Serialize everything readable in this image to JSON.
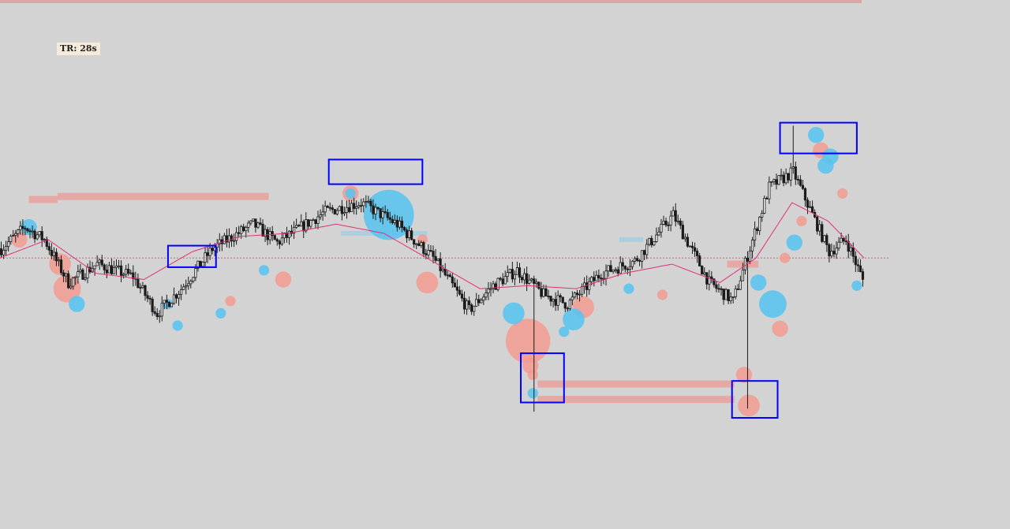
{
  "timer": {
    "label": "TR: 28s"
  },
  "colors": {
    "background": "#d3d3d3",
    "candle": "#1c1c1c",
    "moving_average": "#e0307a",
    "sell_bubble": "#f29a90",
    "buy_bubble": "#5cc3ee",
    "liquidity_zone": "#e8a3a0",
    "buy_zone": "#a9cde0",
    "highlight_box": "#0000ff",
    "price_line": "#cc6666",
    "top_band": "#dca4a4"
  },
  "chart_data": {
    "type": "candlestick",
    "title": "",
    "xlabel": "",
    "ylabel": "",
    "timer_label": "TR: 28s",
    "x_count": 360,
    "ylim": [
      0,
      100
    ],
    "grid": false,
    "legend": "none",
    "price_path": [
      [
        0,
        55
      ],
      [
        10,
        62
      ],
      [
        18,
        58
      ],
      [
        28,
        44
      ],
      [
        40,
        50
      ],
      [
        55,
        46
      ],
      [
        65,
        34
      ],
      [
        75,
        42
      ],
      [
        88,
        55
      ],
      [
        105,
        63
      ],
      [
        115,
        57
      ],
      [
        135,
        67
      ],
      [
        150,
        70
      ],
      [
        165,
        63
      ],
      [
        180,
        52
      ],
      [
        195,
        35
      ],
      [
        205,
        43
      ],
      [
        215,
        48
      ],
      [
        226,
        40
      ],
      [
        236,
        37
      ],
      [
        250,
        47
      ],
      [
        264,
        51
      ],
      [
        280,
        66
      ],
      [
        295,
        44
      ],
      [
        305,
        38
      ],
      [
        320,
        75
      ],
      [
        330,
        80
      ],
      [
        345,
        54
      ],
      [
        352,
        58
      ],
      [
        360,
        43
      ]
    ],
    "moving_average": [
      [
        0,
        52
      ],
      [
        20,
        58
      ],
      [
        40,
        47
      ],
      [
        60,
        45
      ],
      [
        80,
        54
      ],
      [
        100,
        59
      ],
      [
        120,
        60
      ],
      [
        140,
        63
      ],
      [
        160,
        60
      ],
      [
        180,
        51
      ],
      [
        200,
        42
      ],
      [
        220,
        43
      ],
      [
        240,
        42
      ],
      [
        260,
        47
      ],
      [
        280,
        50
      ],
      [
        300,
        44
      ],
      [
        315,
        52
      ],
      [
        330,
        70
      ],
      [
        345,
        64
      ],
      [
        360,
        52
      ]
    ],
    "spikes": [
      {
        "x": 222,
        "low": 2
      },
      {
        "x": 311,
        "low": 3
      },
      {
        "x": 330,
        "high": 95
      }
    ],
    "bubbles": [
      {
        "x": 8,
        "y": 58,
        "size": 2,
        "side": "sell"
      },
      {
        "x": 12,
        "y": 62,
        "size": 2,
        "side": "buy"
      },
      {
        "x": 25,
        "y": 50,
        "size": 3,
        "side": "sell"
      },
      {
        "x": 28,
        "y": 42,
        "size": 4,
        "side": "sell"
      },
      {
        "x": 32,
        "y": 37,
        "size": 2,
        "side": "buy"
      },
      {
        "x": 70,
        "y": 37,
        "size": 1,
        "side": "buy"
      },
      {
        "x": 74,
        "y": 30,
        "size": 1,
        "side": "buy"
      },
      {
        "x": 96,
        "y": 38,
        "size": 1,
        "side": "sell"
      },
      {
        "x": 92,
        "y": 34,
        "size": 1,
        "side": "buy"
      },
      {
        "x": 110,
        "y": 48,
        "size": 1,
        "side": "buy"
      },
      {
        "x": 118,
        "y": 45,
        "size": 2,
        "side": "sell"
      },
      {
        "x": 146,
        "y": 73,
        "size": 2,
        "side": "sell"
      },
      {
        "x": 146,
        "y": 73,
        "size": 1,
        "side": "buy"
      },
      {
        "x": 162,
        "y": 66,
        "size": 8,
        "side": "buy"
      },
      {
        "x": 176,
        "y": 58,
        "size": 1,
        "side": "sell"
      },
      {
        "x": 178,
        "y": 44,
        "size": 3,
        "side": "sell"
      },
      {
        "x": 214,
        "y": 34,
        "size": 3,
        "side": "buy"
      },
      {
        "x": 220,
        "y": 25,
        "size": 7,
        "side": "sell"
      },
      {
        "x": 221,
        "y": 17,
        "size": 2,
        "side": "sell"
      },
      {
        "x": 222,
        "y": 8,
        "size": 1,
        "side": "buy"
      },
      {
        "x": 222,
        "y": 14,
        "size": 1,
        "side": "sell"
      },
      {
        "x": 235,
        "y": 28,
        "size": 1,
        "side": "buy"
      },
      {
        "x": 239,
        "y": 32,
        "size": 3,
        "side": "buy"
      },
      {
        "x": 243,
        "y": 36,
        "size": 3,
        "side": "sell"
      },
      {
        "x": 262,
        "y": 42,
        "size": 1,
        "side": "buy"
      },
      {
        "x": 276,
        "y": 40,
        "size": 1,
        "side": "sell"
      },
      {
        "x": 310,
        "y": 14,
        "size": 2,
        "side": "sell"
      },
      {
        "x": 312,
        "y": 4,
        "size": 3,
        "side": "sell"
      },
      {
        "x": 316,
        "y": 44,
        "size": 2,
        "side": "buy"
      },
      {
        "x": 322,
        "y": 37,
        "size": 4,
        "side": "buy"
      },
      {
        "x": 325,
        "y": 29,
        "size": 2,
        "side": "sell"
      },
      {
        "x": 327,
        "y": 52,
        "size": 1,
        "side": "sell"
      },
      {
        "x": 331,
        "y": 57,
        "size": 2,
        "side": "buy"
      },
      {
        "x": 334,
        "y": 64,
        "size": 1,
        "side": "sell"
      },
      {
        "x": 340,
        "y": 92,
        "size": 2,
        "side": "buy"
      },
      {
        "x": 342,
        "y": 87,
        "size": 2,
        "side": "sell"
      },
      {
        "x": 344,
        "y": 82,
        "size": 2,
        "side": "buy"
      },
      {
        "x": 346,
        "y": 85,
        "size": 2,
        "side": "buy"
      },
      {
        "x": 351,
        "y": 73,
        "size": 1,
        "side": "sell"
      },
      {
        "x": 357,
        "y": 43,
        "size": 1,
        "side": "buy"
      }
    ],
    "liquidity_zones": [
      {
        "x_start": 224,
        "x_end": 306,
        "y": 11,
        "side": "sell"
      },
      {
        "x_start": 224,
        "x_end": 306,
        "y": 6,
        "side": "sell"
      },
      {
        "x_start": 12,
        "x_end": 24,
        "y": 71,
        "side": "sell"
      },
      {
        "x_start": 24,
        "x_end": 112,
        "y": 72,
        "side": "sell"
      },
      {
        "x_start": 142,
        "x_end": 178,
        "y": 60,
        "side": "buy"
      },
      {
        "x_start": 303,
        "x_end": 316,
        "y": 50,
        "side": "sell"
      },
      {
        "x_start": 258,
        "x_end": 268,
        "y": 58,
        "side": "buy"
      }
    ],
    "highlight_boxes": [
      {
        "x_start": 70,
        "x_end": 90,
        "y_low": 49,
        "y_high": 56
      },
      {
        "x_start": 137,
        "x_end": 176,
        "y_low": 76,
        "y_high": 84
      },
      {
        "x_start": 217,
        "x_end": 235,
        "y_low": 5,
        "y_high": 21
      },
      {
        "x_start": 305,
        "x_end": 324,
        "y_low": 0,
        "y_high": 12
      },
      {
        "x_start": 325,
        "x_end": 357,
        "y_low": 86,
        "y_high": 96
      }
    ],
    "reference_price": 52
  }
}
